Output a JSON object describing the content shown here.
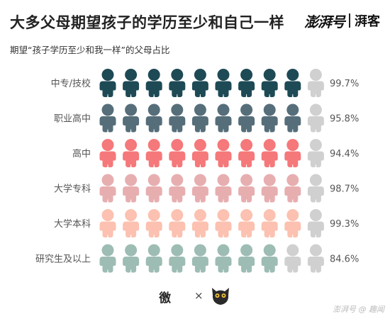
{
  "header": {
    "title": "大多父母期望孩子的学历至少和自己一样",
    "brand_main": "澎湃号",
    "brand_sub": "湃客"
  },
  "chart_data": {
    "type": "pictograph",
    "title": "大多父母期望孩子的学历至少和自己一样",
    "subtitle": "期望“孩子学历至少和我一样”的父母占比",
    "icons_per_row": 10,
    "unit": "%",
    "categories": [
      "中专/技校",
      "职业高中",
      "高中",
      "大学专科",
      "大学本科",
      "研究生及以上"
    ],
    "values": [
      99.7,
      95.8,
      94.4,
      98.7,
      99.3,
      84.6
    ],
    "value_labels": [
      "99.7%",
      "95.8%",
      "94.4%",
      "98.7%",
      "99.3%",
      "84.6%"
    ],
    "colors": [
      "#1d4a55",
      "#566e7a",
      "#f5787a",
      "#e7aeb0",
      "#fcc1b0",
      "#9dbcb4"
    ],
    "empty_color": "#d0d0d0"
  },
  "footer": {
    "logo_text": "徼",
    "separator": "×",
    "owl_icon": "owl-icon"
  },
  "watermark": "澎湃号 @ 趣闻"
}
